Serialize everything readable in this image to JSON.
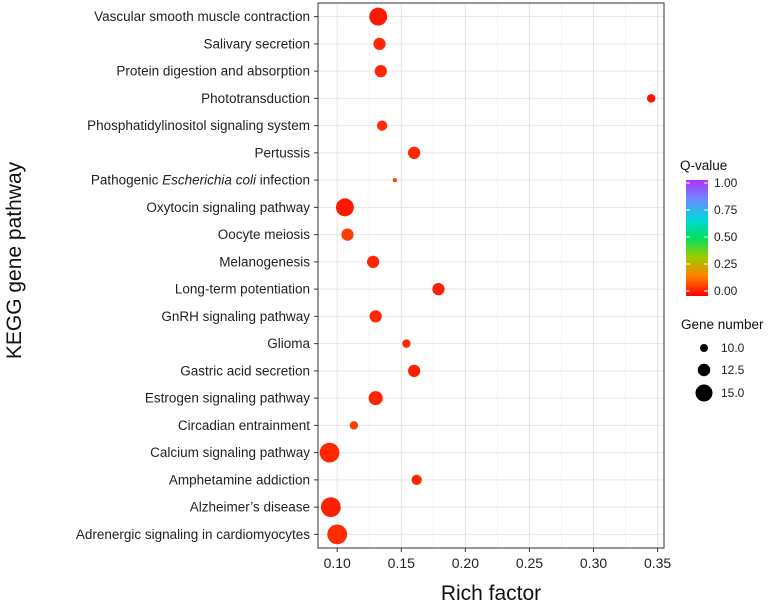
{
  "chart_data": {
    "type": "scatter",
    "xlabel": "Rich factor",
    "ylabel": "KEGG gene pathway",
    "xlim": [
      0.085,
      0.355
    ],
    "xticks": [
      0.1,
      0.15,
      0.2,
      0.25,
      0.3,
      0.35
    ],
    "xtick_labels": [
      "0.10",
      "0.15",
      "0.20",
      "0.25",
      "0.30",
      "0.35"
    ],
    "grid": true,
    "points": [
      {
        "pathway": "Vascular smooth muscle contraction",
        "rich_factor": 0.132,
        "gene_number": 15,
        "q_value": 0.03
      },
      {
        "pathway": "Salivary secretion",
        "rich_factor": 0.133,
        "gene_number": 12,
        "q_value": 0.05
      },
      {
        "pathway": "Protein digestion and absorption",
        "rich_factor": 0.134,
        "gene_number": 12,
        "q_value": 0.05
      },
      {
        "pathway": "Phototransduction",
        "rich_factor": 0.345,
        "gene_number": 10,
        "q_value": 0.02
      },
      {
        "pathway": "Phosphatidylinositol signaling system",
        "rich_factor": 0.135,
        "gene_number": 11,
        "q_value": 0.06
      },
      {
        "pathway": "Pertussis",
        "rich_factor": 0.16,
        "gene_number": 12,
        "q_value": 0.05
      },
      {
        "pathway": "Pathogenic Escherichia coli infection",
        "pathway_prefix": "Pathogenic ",
        "pathway_italic": "Escherichia coli",
        "pathway_suffix": " infection",
        "rich_factor": 0.145,
        "gene_number": 7,
        "q_value": 0.08
      },
      {
        "pathway": "Oxytocin signaling pathway",
        "rich_factor": 0.106,
        "gene_number": 15,
        "q_value": 0.03
      },
      {
        "pathway": "Oocyte meiosis",
        "rich_factor": 0.108,
        "gene_number": 12,
        "q_value": 0.08
      },
      {
        "pathway": "Melanogenesis",
        "rich_factor": 0.128,
        "gene_number": 12,
        "q_value": 0.05
      },
      {
        "pathway": "Long-term potentiation",
        "rich_factor": 0.179,
        "gene_number": 12,
        "q_value": 0.04
      },
      {
        "pathway": "GnRH signaling pathway",
        "rich_factor": 0.13,
        "gene_number": 12,
        "q_value": 0.05
      },
      {
        "pathway": "Glioma",
        "rich_factor": 0.154,
        "gene_number": 10,
        "q_value": 0.06
      },
      {
        "pathway": "Gastric acid secretion",
        "rich_factor": 0.16,
        "gene_number": 12,
        "q_value": 0.04
      },
      {
        "pathway": "Estrogen signaling pathway",
        "rich_factor": 0.13,
        "gene_number": 13,
        "q_value": 0.05
      },
      {
        "pathway": "Circadian entrainment",
        "rich_factor": 0.113,
        "gene_number": 10,
        "q_value": 0.08
      },
      {
        "pathway": "Calcium signaling pathway",
        "rich_factor": 0.094,
        "gene_number": 16,
        "q_value": 0.05
      },
      {
        "pathway": "Amphetamine addiction",
        "rich_factor": 0.162,
        "gene_number": 11,
        "q_value": 0.05
      },
      {
        "pathway": "Alzheimer’s disease",
        "rich_factor": 0.095,
        "gene_number": 16,
        "q_value": 0.04
      },
      {
        "pathway": "Adrenergic signaling in cardiomyocytes",
        "rich_factor": 0.1,
        "gene_number": 16,
        "q_value": 0.06
      }
    ],
    "legend": {
      "color_title": "Q-value",
      "color_range": [
        0.0,
        1.0
      ],
      "color_ticks": [
        "1.00",
        "0.75",
        "0.50",
        "0.25",
        "0.00"
      ],
      "color_tick_values": [
        1.0,
        0.75,
        0.5,
        0.25,
        0.0
      ],
      "size_title": "Gene number",
      "size_ticks": [
        "10.0",
        "12.5",
        "15.0"
      ],
      "size_tick_values": [
        10.0,
        12.5,
        15.0
      ],
      "placement": "right"
    }
  }
}
